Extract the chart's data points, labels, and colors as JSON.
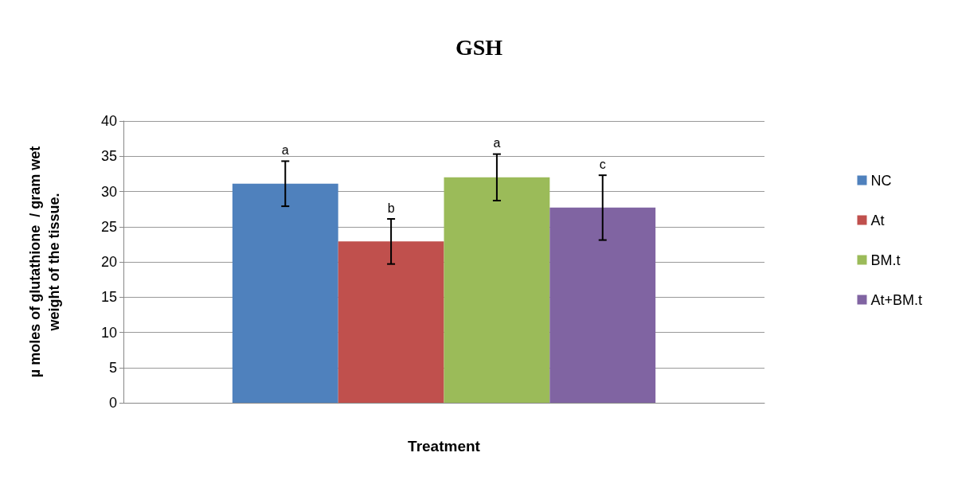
{
  "chart_data": {
    "type": "bar",
    "title": "GSH",
    "xlabel": "Treatment",
    "ylabel": "µ moles of glutathione  / gram wet weight of the tissue.",
    "categories": [
      null
    ],
    "series": [
      {
        "name": "NC",
        "color": "#4f81bd",
        "values": [
          31.1
        ],
        "errors": [
          3.2
        ]
      },
      {
        "name": "At",
        "color": "#c0504d",
        "values": [
          22.9
        ],
        "errors": [
          3.2
        ]
      },
      {
        "name": "BM.t",
        "color": "#9bbb59",
        "values": [
          32.0
        ],
        "errors": [
          3.3
        ]
      },
      {
        "name": "At+BM.t",
        "color": "#8064a2",
        "values": [
          27.7
        ],
        "errors": [
          4.6
        ]
      }
    ],
    "annotations": [
      "a",
      "b",
      "a",
      "c"
    ],
    "ylim": [
      0,
      40
    ],
    "yticks": [
      0,
      5,
      10,
      15,
      20,
      25,
      30,
      35,
      40
    ],
    "grid": "y",
    "legend": "right"
  }
}
